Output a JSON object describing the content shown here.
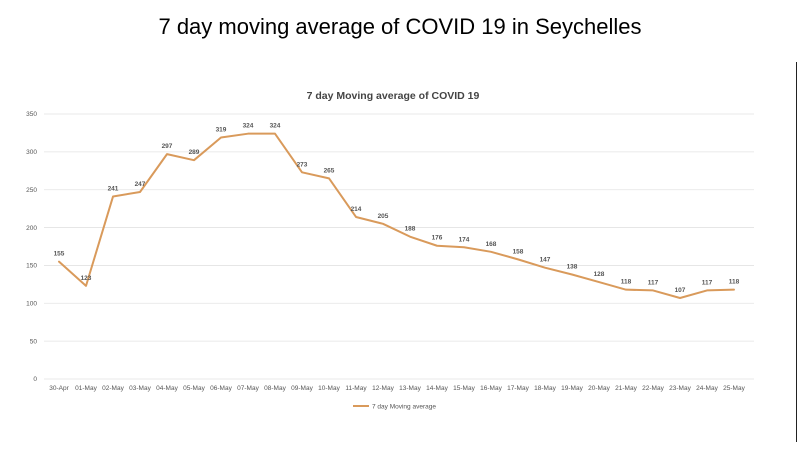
{
  "slide": {
    "title": "7 day moving average of COVID 19 in Seychelles"
  },
  "chart_data": {
    "type": "line",
    "title": "7 day Moving average of COVID 19",
    "xlabel": "",
    "ylabel": "",
    "ylim": [
      0,
      350
    ],
    "yticks": [
      0,
      50,
      100,
      150,
      200,
      250,
      300,
      350
    ],
    "grid": true,
    "legend_position": "bottom",
    "color": "#d99a5b",
    "categories": [
      "30-Apr",
      "01-May",
      "02-May",
      "03-May",
      "04-May",
      "05-May",
      "06-May",
      "07-May",
      "08-May",
      "09-May",
      "10-May",
      "11-May",
      "12-May",
      "13-May",
      "14-May",
      "15-May",
      "16-May",
      "17-May",
      "18-May",
      "19-May",
      "20-May",
      "21-May",
      "22-May",
      "23-May",
      "24-May",
      "25-May"
    ],
    "series": [
      {
        "name": "7 day Moving average",
        "values": [
          155,
          123,
          241,
          247,
          297,
          289,
          319,
          324,
          324,
          273,
          265,
          214,
          205,
          188,
          176,
          174,
          168,
          158,
          147,
          138,
          128,
          118,
          117,
          107,
          117,
          118
        ]
      }
    ]
  }
}
